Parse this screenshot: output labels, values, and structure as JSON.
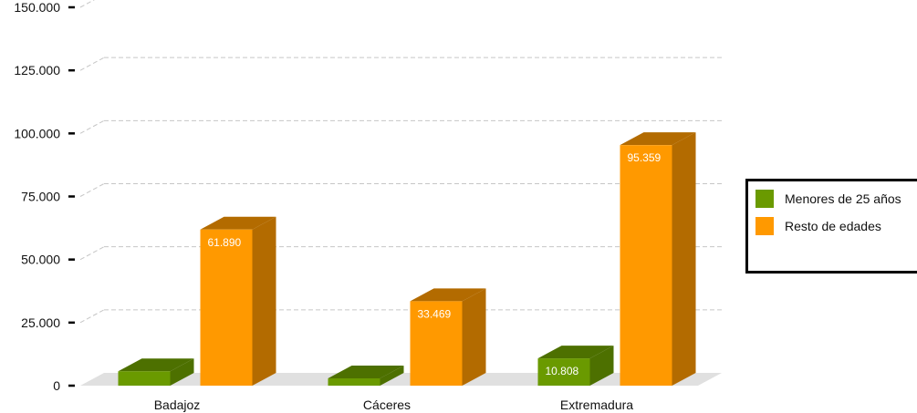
{
  "chart_data": {
    "type": "bar",
    "categories": [
      "Badajoz",
      "Cáceres",
      "Extremadura"
    ],
    "series": [
      {
        "name": "Menores de 25 años",
        "values": [
          5700,
          2900,
          10808
        ],
        "labels": [
          "",
          "",
          "10.808"
        ],
        "color": "#6a9a00",
        "color_dark": "#4d7000"
      },
      {
        "name": "Resto de edades",
        "values": [
          61890,
          33469,
          95359
        ],
        "labels": [
          "61.890",
          "33.469",
          "95.359"
        ],
        "color": "#ff9900",
        "color_dark": "#b36b00"
      }
    ],
    "yticks": [
      "0",
      "25.000",
      "50.000",
      "75.000",
      "100.000",
      "125.000",
      "150.000"
    ],
    "ylim": [
      0,
      150000
    ],
    "grid": true,
    "legend_position": "right"
  }
}
